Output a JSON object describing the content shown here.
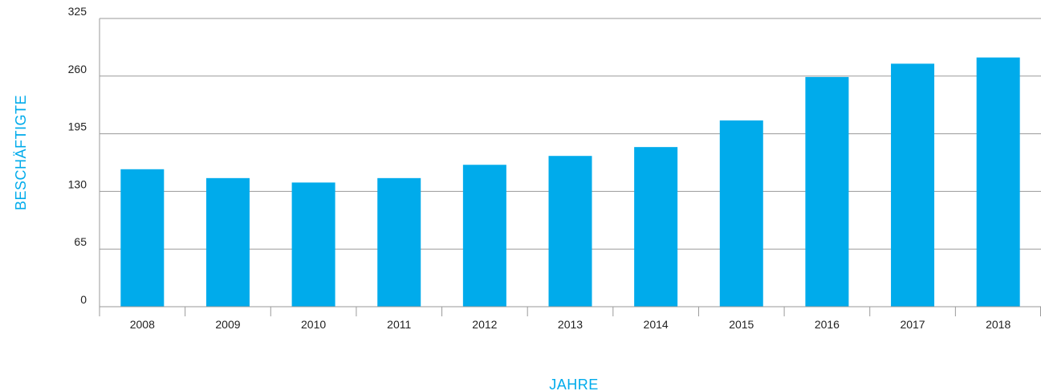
{
  "chart_data": {
    "type": "bar",
    "categories": [
      "2008",
      "2009",
      "2010",
      "2011",
      "2012",
      "2013",
      "2014",
      "2015",
      "2016",
      "2017",
      "2018"
    ],
    "values": [
      155,
      145,
      140,
      145,
      160,
      170,
      180,
      210,
      259,
      274,
      281
    ],
    "title": "",
    "xlabel": "JAHRE",
    "ylabel": "BESCHÄFTIGTE",
    "ylim": [
      0,
      325
    ],
    "yticks": [
      "0",
      "65",
      "130",
      "195",
      "260",
      "325"
    ],
    "grid": true,
    "legend": "none",
    "colors": {
      "bar": "#00abeb",
      "axis_title": "#00abeb",
      "grid": "#9a9a9a",
      "tick_text": "#222222"
    }
  }
}
